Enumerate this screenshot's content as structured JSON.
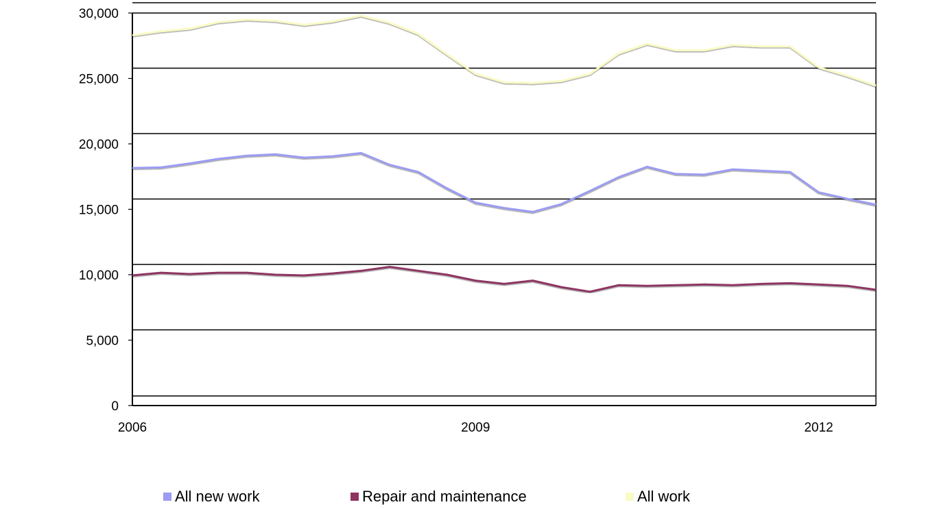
{
  "chart_data": {
    "type": "line",
    "title": "",
    "xlabel": "",
    "ylabel": "",
    "x_tick_labels": [
      "2006",
      "2009",
      "2012"
    ],
    "y_tick_labels": [
      "0",
      "5,000",
      "10,000",
      "15,000",
      "20,000",
      "25,000",
      "30,000"
    ],
    "ylim": [
      0,
      30000
    ],
    "y_ticks": [
      0,
      5000,
      10000,
      15000,
      20000,
      25000,
      30000
    ],
    "grid": "horizontal",
    "legend_position": "bottom",
    "x": [
      "2006 Q1",
      "2006 Q2",
      "2006 Q3",
      "2006 Q4",
      "2007 Q1",
      "2007 Q2",
      "2007 Q3",
      "2007 Q4",
      "2008 Q1",
      "2008 Q2",
      "2008 Q3",
      "2008 Q4",
      "2009 Q1",
      "2009 Q2",
      "2009 Q3",
      "2009 Q4",
      "2010 Q1",
      "2010 Q2",
      "2010 Q3",
      "2010 Q4",
      "2011 Q1",
      "2011 Q2",
      "2011 Q3",
      "2011 Q4",
      "2012 Q1",
      "2012 Q2",
      "2012 Q3"
    ],
    "series": [
      {
        "name": "All new work",
        "color": "#9c9cf2",
        "values": [
          18150,
          18200,
          18500,
          18850,
          19100,
          19200,
          18950,
          19050,
          19300,
          18400,
          17850,
          16600,
          15500,
          15100,
          14800,
          15400,
          16400,
          17450,
          18250,
          17700,
          17650,
          18050,
          17950,
          17850,
          16300,
          15800,
          15350
        ]
      },
      {
        "name": "Repair and maintenance",
        "color": "#8e3462",
        "values": [
          9950,
          10150,
          10050,
          10150,
          10150,
          10000,
          9950,
          10100,
          10300,
          10600,
          10300,
          10000,
          9550,
          9300,
          9550,
          9050,
          8700,
          9200,
          9150,
          9200,
          9250,
          9200,
          9300,
          9350,
          9250,
          9150,
          8850
        ]
      },
      {
        "name": "All work",
        "color": "#fafac6",
        "values": [
          28300,
          28600,
          28800,
          29300,
          29500,
          29400,
          29100,
          29350,
          29800,
          29250,
          28400,
          26850,
          25350,
          24700,
          24650,
          24800,
          25350,
          26900,
          27650,
          27150,
          27150,
          27550,
          27450,
          27450,
          25850,
          25200,
          24450
        ]
      }
    ]
  }
}
